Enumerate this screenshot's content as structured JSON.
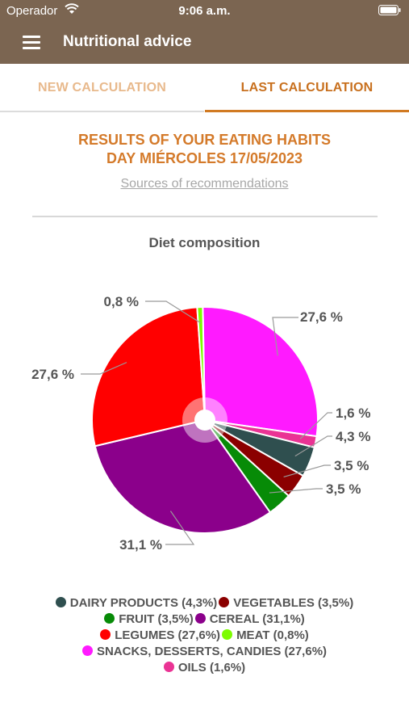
{
  "status": {
    "carrier": "Operador",
    "time": "9:06 a.m."
  },
  "header": {
    "title": "Nutritional advice"
  },
  "tabs": [
    {
      "label": "NEW CALCULATION",
      "active": false
    },
    {
      "label": "LAST CALCULATION",
      "active": true
    }
  ],
  "results": {
    "title_line1": "RESULTS OF YOUR EATING HABITS",
    "title_line2": "DAY MIÉRCOLES 17/05/2023",
    "sources_link": "Sources of recommendations"
  },
  "chart_data": {
    "type": "pie",
    "title": "Diet composition",
    "slices": [
      {
        "name": "SNACKS, DESSERTS, CANDIES",
        "value": 27.6,
        "label": "27,6 %",
        "color": "#ff1aff"
      },
      {
        "name": "OILS",
        "value": 1.6,
        "label": "1,6 %",
        "color": "#ea3394"
      },
      {
        "name": "DAIRY PRODUCTS",
        "value": 4.3,
        "label": "4,3 %",
        "color": "#2f4f4f"
      },
      {
        "name": "VEGETABLES",
        "value": 3.5,
        "label": "3,5 %",
        "color": "#8b0000"
      },
      {
        "name": "FRUIT",
        "value": 3.5,
        "label": "3,5 %",
        "color": "#078b07"
      },
      {
        "name": "CEREAL",
        "value": 31.1,
        "label": "31,1 %",
        "color": "#8b008b"
      },
      {
        "name": "LEGUMES",
        "value": 27.6,
        "label": "27,6 %",
        "color": "#ff0000"
      },
      {
        "name": "MEAT",
        "value": 0.8,
        "label": "0,8 %",
        "color": "#7cfc00"
      }
    ],
    "legend": [
      [
        "DAIRY PRODUCTS (4,3%)",
        "VEGETABLES (3,5%)"
      ],
      [
        "FRUIT (3,5%)",
        "CEREAL (31,1%)"
      ],
      [
        "LEGUMES (27,6%)",
        "MEAT (0,8%)"
      ],
      [
        "SNACKS, DESSERTS, CANDIES (27,6%)"
      ],
      [
        "OILS (1,6%)"
      ]
    ],
    "legend_colors": [
      [
        "#2f4f4f",
        "#8b0000"
      ],
      [
        "#078b07",
        "#8b008b"
      ],
      [
        "#ff0000",
        "#7cfc00"
      ],
      [
        "#ff1aff"
      ],
      [
        "#ea3394"
      ]
    ]
  }
}
